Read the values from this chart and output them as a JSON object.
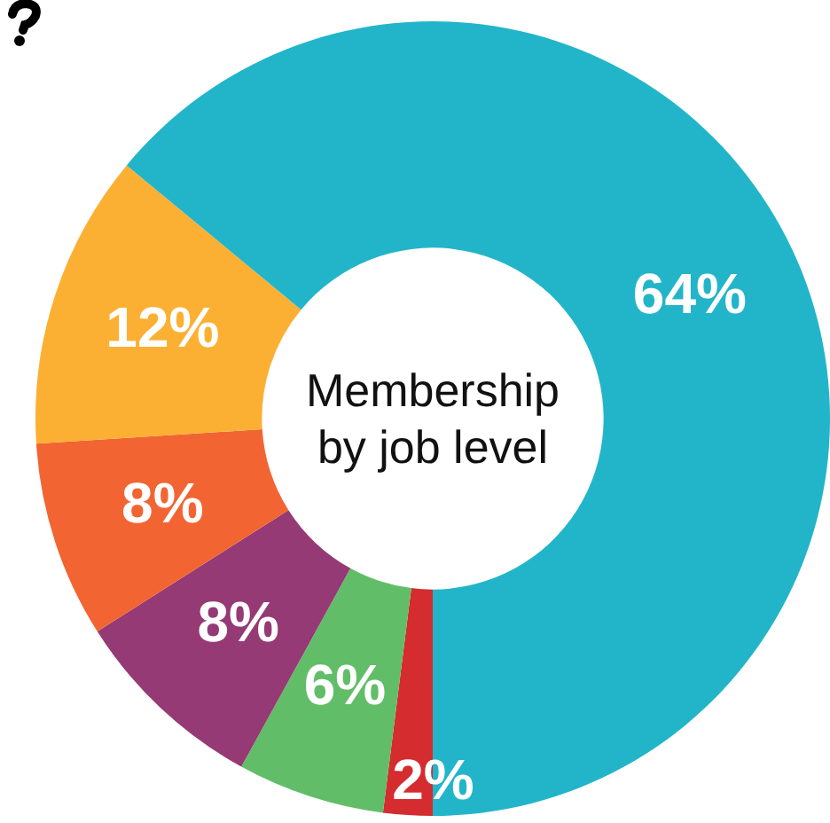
{
  "chart_data": {
    "type": "donut",
    "title": "Membership by job level",
    "categories": [
      null,
      null,
      null,
      null,
      null,
      null
    ],
    "values": [
      2,
      6,
      8,
      8,
      12,
      64
    ],
    "colors": [
      "#d42c2f",
      "#62bd69",
      "#953a74",
      "#f26532",
      "#fbb034",
      "#22b5c9"
    ],
    "value_labels": [
      "2%",
      "6%",
      "8%",
      "8%",
      "12%",
      "64%"
    ],
    "legend": false
  }
}
